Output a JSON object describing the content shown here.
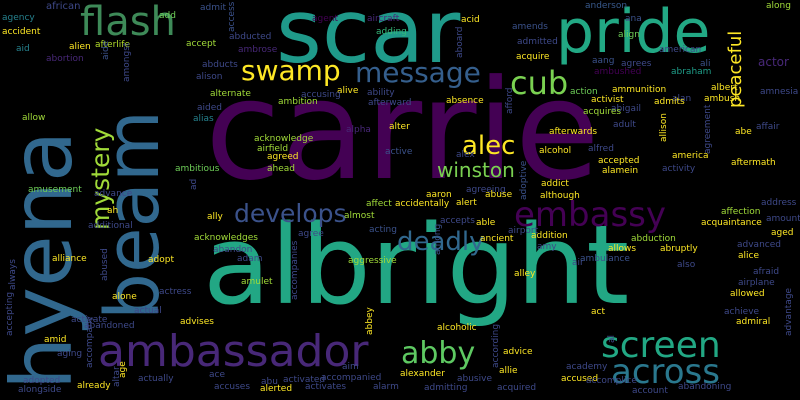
{
  "words": [
    {
      "text": "carrie",
      "color": "#440154"
    },
    {
      "text": "albright",
      "color": "#22a784"
    },
    {
      "text": "scar",
      "color": "#1f9a8a"
    },
    {
      "text": "hyena",
      "color": "#31688e"
    },
    {
      "text": "beam",
      "color": "#31688e"
    },
    {
      "text": "pride",
      "color": "#22a884"
    },
    {
      "text": "ambassador",
      "color": "#482878"
    },
    {
      "text": "flash",
      "color": "#3e8a58"
    },
    {
      "text": "embassy",
      "color": "#440154"
    },
    {
      "text": "screen",
      "color": "#22a884"
    },
    {
      "text": "across",
      "color": "#2a788e"
    },
    {
      "text": "abby",
      "color": "#5ec962"
    },
    {
      "text": "swamp",
      "color": "#fde725"
    },
    {
      "text": "message",
      "color": "#355f8d"
    },
    {
      "text": "cub",
      "color": "#7ad151"
    },
    {
      "text": "mystery",
      "color": "#a0da39"
    },
    {
      "text": "alec",
      "color": "#fde725"
    },
    {
      "text": "develops",
      "color": "#3b528b"
    },
    {
      "text": "deadly",
      "color": "#31688e"
    },
    {
      "text": "winston",
      "color": "#7ad151"
    },
    {
      "text": "peaceful",
      "color": "#fde725"
    },
    {
      "text": "actor",
      "color": "#482878"
    },
    {
      "text": "alien",
      "color": "#fde725"
    },
    {
      "text": "african",
      "color": "#3e4989"
    },
    {
      "text": "agency",
      "color": "#26828e"
    },
    {
      "text": "accident",
      "color": "#fde725"
    },
    {
      "text": "aid",
      "color": "#26828e"
    },
    {
      "text": "abortion",
      "color": "#482878"
    },
    {
      "text": "afterlife",
      "color": "#b5de2b"
    },
    {
      "text": "aide",
      "color": "#3b528b"
    },
    {
      "text": "amongst",
      "color": "#3e4989"
    },
    {
      "text": "add",
      "color": "#6ece58"
    },
    {
      "text": "admit",
      "color": "#3b528b"
    },
    {
      "text": "abducted",
      "color": "#3e4989"
    },
    {
      "text": "ambrose",
      "color": "#482878"
    },
    {
      "text": "abducts",
      "color": "#3e4989"
    },
    {
      "text": "alison",
      "color": "#3e4989"
    },
    {
      "text": "access",
      "color": "#3b528b"
    },
    {
      "text": "accept",
      "color": "#a0da39"
    },
    {
      "text": "agent",
      "color": "#440154"
    },
    {
      "text": "aircraft",
      "color": "#482878"
    },
    {
      "text": "adding",
      "color": "#35b779"
    },
    {
      "text": "acid",
      "color": "#fde725"
    },
    {
      "text": "aboard",
      "color": "#3e4989"
    },
    {
      "text": "amends",
      "color": "#3b528b"
    },
    {
      "text": "admitted",
      "color": "#3e4989"
    },
    {
      "text": "acquire",
      "color": "#fde725"
    },
    {
      "text": "anderson",
      "color": "#38598c"
    },
    {
      "text": "ana",
      "color": "#3b528b"
    },
    {
      "text": "align",
      "color": "#6ece58"
    },
    {
      "text": "along",
      "color": "#a0da39"
    },
    {
      "text": "aang",
      "color": "#3b528b"
    },
    {
      "text": "agrees",
      "color": "#3e4989"
    },
    {
      "text": "ambushed",
      "color": "#440154"
    },
    {
      "text": "american",
      "color": "#3e4989"
    },
    {
      "text": "action",
      "color": "#6ece58"
    },
    {
      "text": "ammunition",
      "color": "#fde725"
    },
    {
      "text": "activist",
      "color": "#fde725"
    },
    {
      "text": "abraham",
      "color": "#1f9e89"
    },
    {
      "text": "ali",
      "color": "#3b528b"
    },
    {
      "text": "alan",
      "color": "#3e4989"
    },
    {
      "text": "amnesia",
      "color": "#3e4989"
    },
    {
      "text": "albert",
      "color": "#fde725"
    },
    {
      "text": "ambush",
      "color": "#fde725"
    },
    {
      "text": "admits",
      "color": "#fde725"
    },
    {
      "text": "abigail",
      "color": "#3e4989"
    },
    {
      "text": "acquires",
      "color": "#a0da39"
    },
    {
      "text": "absence",
      "color": "#fde725"
    },
    {
      "text": "affair",
      "color": "#3e4989"
    },
    {
      "text": "alive",
      "color": "#fde725"
    },
    {
      "text": "ability",
      "color": "#3e4989"
    },
    {
      "text": "alternate",
      "color": "#a0da39"
    },
    {
      "text": "ambition",
      "color": "#a0da39"
    },
    {
      "text": "accusing",
      "color": "#3e4989"
    },
    {
      "text": "aided",
      "color": "#3e4989"
    },
    {
      "text": "alias",
      "color": "#26828e"
    },
    {
      "text": "acknowledge",
      "color": "#a0da39"
    },
    {
      "text": "airfield",
      "color": "#a0da39"
    },
    {
      "text": "alpha",
      "color": "#482878"
    },
    {
      "text": "alter",
      "color": "#fde725"
    },
    {
      "text": "afterward",
      "color": "#3e4989"
    },
    {
      "text": "afford",
      "color": "#3e4989"
    },
    {
      "text": "afterwards",
      "color": "#fde725"
    },
    {
      "text": "adult",
      "color": "#3e4989"
    },
    {
      "text": "allison",
      "color": "#fde725"
    },
    {
      "text": "agreement",
      "color": "#3e4989"
    },
    {
      "text": "abe",
      "color": "#fde725"
    },
    {
      "text": "allow",
      "color": "#a0da39"
    },
    {
      "text": "amusement",
      "color": "#6ece58"
    },
    {
      "text": "advance",
      "color": "#3e4989"
    },
    {
      "text": "ambitious",
      "color": "#6ece58"
    },
    {
      "text": "agreed",
      "color": "#fde725"
    },
    {
      "text": "ahead",
      "color": "#a0da39"
    },
    {
      "text": "active",
      "color": "#3b528b"
    },
    {
      "text": "alcohol",
      "color": "#fde725"
    },
    {
      "text": "alfred",
      "color": "#3e4989"
    },
    {
      "text": "accepted",
      "color": "#fde725"
    },
    {
      "text": "alamein",
      "color": "#fde725"
    },
    {
      "text": "america",
      "color": "#fde725"
    },
    {
      "text": "activity",
      "color": "#3e4989"
    },
    {
      "text": "aftermath",
      "color": "#fde725"
    },
    {
      "text": "alex",
      "color": "#3e4989"
    },
    {
      "text": "adoptive",
      "color": "#3b528b"
    },
    {
      "text": "addict",
      "color": "#fde725"
    },
    {
      "text": "although",
      "color": "#fde725"
    },
    {
      "text": "ad",
      "color": "#3e4989"
    },
    {
      "text": "affect",
      "color": "#a0da39"
    },
    {
      "text": "accidentally",
      "color": "#fde725"
    },
    {
      "text": "alert",
      "color": "#fde725"
    },
    {
      "text": "agreeing",
      "color": "#3e4989"
    },
    {
      "text": "aaron",
      "color": "#fde725"
    },
    {
      "text": "abuse",
      "color": "#fde725"
    },
    {
      "text": "ah",
      "color": "#fde725"
    },
    {
      "text": "additional",
      "color": "#3e4989"
    },
    {
      "text": "almost",
      "color": "#a0da39"
    },
    {
      "text": "affection",
      "color": "#a0da39"
    },
    {
      "text": "address",
      "color": "#3e4989"
    },
    {
      "text": "acquaintance",
      "color": "#fde725"
    },
    {
      "text": "amount",
      "color": "#3e4989"
    },
    {
      "text": "aged",
      "color": "#fde725"
    },
    {
      "text": "acknowledges",
      "color": "#a0da39"
    },
    {
      "text": "ally",
      "color": "#fde725"
    },
    {
      "text": "agree",
      "color": "#3e4989"
    },
    {
      "text": "acting",
      "color": "#3b528b"
    },
    {
      "text": "airport",
      "color": "#3e4989"
    },
    {
      "text": "accepts",
      "color": "#3e4989"
    },
    {
      "text": "able",
      "color": "#fde725"
    },
    {
      "text": "addition",
      "color": "#fde725"
    },
    {
      "text": "abduction",
      "color": "#a0da39"
    },
    {
      "text": "advanced",
      "color": "#3e4989"
    },
    {
      "text": "alice",
      "color": "#fde725"
    },
    {
      "text": "adam",
      "color": "#3e4989"
    },
    {
      "text": "abandon",
      "color": "#3e4989"
    },
    {
      "text": "among",
      "color": "#3b528b"
    },
    {
      "text": "aggressive",
      "color": "#a0da39"
    },
    {
      "text": "ancient",
      "color": "#fde725"
    },
    {
      "text": "amy",
      "color": "#3e4989"
    },
    {
      "text": "allows",
      "color": "#fde725"
    },
    {
      "text": "abruptly",
      "color": "#fde725"
    },
    {
      "text": "air",
      "color": "#3e4989"
    },
    {
      "text": "ambulance",
      "color": "#3b528b"
    },
    {
      "text": "also",
      "color": "#3e4989"
    },
    {
      "text": "alliance",
      "color": "#fde725"
    },
    {
      "text": "abused",
      "color": "#3e4989"
    },
    {
      "text": "adopt",
      "color": "#fde725"
    },
    {
      "text": "amulet",
      "color": "#a0da39"
    },
    {
      "text": "alley",
      "color": "#fde725"
    },
    {
      "text": "afraid",
      "color": "#3e4989"
    },
    {
      "text": "airplane",
      "color": "#3e4989"
    },
    {
      "text": "allowed",
      "color": "#fde725"
    },
    {
      "text": "always",
      "color": "#3e4989"
    },
    {
      "text": "alone",
      "color": "#fde725"
    },
    {
      "text": "actress",
      "color": "#3e4989"
    },
    {
      "text": "accompanies",
      "color": "#3e4989"
    },
    {
      "text": "activate",
      "color": "#3e4989"
    },
    {
      "text": "actual",
      "color": "#3e4989"
    },
    {
      "text": "advises",
      "color": "#fde725"
    },
    {
      "text": "abandoned",
      "color": "#3e4989"
    },
    {
      "text": "abbey",
      "color": "#fde725"
    },
    {
      "text": "alcoholic",
      "color": "#fde725"
    },
    {
      "text": "act",
      "color": "#fde725"
    },
    {
      "text": "achieve",
      "color": "#3e4989"
    },
    {
      "text": "admiral",
      "color": "#fde725"
    },
    {
      "text": "advantage",
      "color": "#3e4989"
    },
    {
      "text": "accepting",
      "color": "#3e4989"
    },
    {
      "text": "amid",
      "color": "#fde725"
    },
    {
      "text": "aging",
      "color": "#3e4989"
    },
    {
      "text": "accompany",
      "color": "#3e4989"
    },
    {
      "text": "advice",
      "color": "#fde725"
    },
    {
      "text": "aim",
      "color": "#3e4989"
    },
    {
      "text": "according",
      "color": "#3e4989"
    },
    {
      "text": "al",
      "color": "#3e4989"
    },
    {
      "text": "academy",
      "color": "#3e4989"
    },
    {
      "text": "adopted",
      "color": "#3e4989"
    },
    {
      "text": "already",
      "color": "#fde725"
    },
    {
      "text": "age",
      "color": "#fde725"
    },
    {
      "text": "actually",
      "color": "#3e4989"
    },
    {
      "text": "ace",
      "color": "#3e4989"
    },
    {
      "text": "abu",
      "color": "#3e4989"
    },
    {
      "text": "activated",
      "color": "#3e4989"
    },
    {
      "text": "accompanied",
      "color": "#3e4989"
    },
    {
      "text": "alexander",
      "color": "#fde725"
    },
    {
      "text": "abusive",
      "color": "#3e4989"
    },
    {
      "text": "allie",
      "color": "#fde725"
    },
    {
      "text": "accused",
      "color": "#fde725"
    },
    {
      "text": "accomplice",
      "color": "#3e4989"
    },
    {
      "text": "alongside",
      "color": "#3e4989"
    },
    {
      "text": "altar",
      "color": "#3e4989"
    },
    {
      "text": "accuses",
      "color": "#3e4989"
    },
    {
      "text": "alerted",
      "color": "#fde725"
    },
    {
      "text": "activates",
      "color": "#3e4989"
    },
    {
      "text": "alarm",
      "color": "#3e4989"
    },
    {
      "text": "admitting",
      "color": "#3e4989"
    },
    {
      "text": "acquired",
      "color": "#3e4989"
    },
    {
      "text": "account",
      "color": "#3e4989"
    },
    {
      "text": "abandoning",
      "color": "#3e4989"
    }
  ]
}
